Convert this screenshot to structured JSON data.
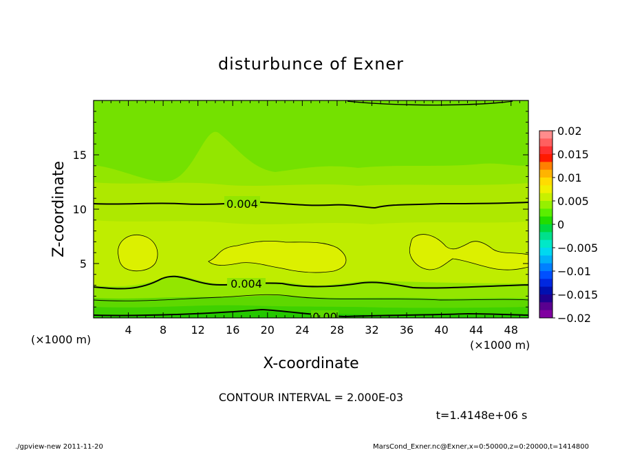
{
  "chart_data": {
    "type": "contour",
    "title": "disturbunce of Exner",
    "xlabel": "X-coordinate",
    "ylabel": "Z-coordinate",
    "x_unit_label": "(×1000 m)",
    "y_unit_label": "(×1000 m)",
    "xlim": [
      0,
      50
    ],
    "ylim": [
      0,
      20
    ],
    "xticks": [
      4,
      8,
      12,
      16,
      20,
      24,
      28,
      32,
      36,
      40,
      44,
      48
    ],
    "yticks": [
      5,
      10,
      15
    ],
    "contour_interval_text": "CONTOUR INTERVAL = 2.000E-03",
    "time_text": "t=1.4148e+06 s",
    "contour_labels": [
      {
        "text": "0.004",
        "x": 17.0,
        "z": 10.4
      },
      {
        "text": "0.004",
        "x": 17.2,
        "z": 3.1
      },
      {
        "text": "0.00",
        "x": 26.5,
        "z": 0.2
      }
    ],
    "colorbar": {
      "tick_labels": [
        "0.02",
        "0.015",
        "0.01",
        "0.005",
        "0",
        "−0.005",
        "−0.01",
        "−0.015",
        "−0.02"
      ],
      "ticks": [
        0.02,
        0.015,
        0.01,
        0.005,
        0,
        -0.005,
        -0.01,
        -0.015,
        -0.02
      ],
      "colors": [
        "#ff8c8c",
        "#ff6060",
        "#ff3030",
        "#ff1a00",
        "#ff8000",
        "#ffb400",
        "#ffdc00",
        "#f0f000",
        "#c8f000",
        "#96f000",
        "#5aee00",
        "#22dd00",
        "#00d840",
        "#00e08c",
        "#00e8c8",
        "#00d8f0",
        "#00b0f8",
        "#0080ff",
        "#0050ff",
        "#0028e0",
        "#0010b0",
        "#200090",
        "#5a0090",
        "#8000a0"
      ]
    },
    "field_levels": [
      {
        "z_range": [
          0,
          0.3
        ],
        "approx_value": 0.001
      },
      {
        "z_range": [
          0.3,
          1.3
        ],
        "approx_value": 0.0015
      },
      {
        "z_range": [
          1.3,
          2.4
        ],
        "approx_value": 0.0025
      },
      {
        "z_range": [
          2.4,
          8.0
        ],
        "approx_value": 0.004
      },
      {
        "z_range": [
          8.0,
          13.0
        ],
        "approx_value": 0.004
      },
      {
        "z_range": [
          13.0,
          20.0
        ],
        "approx_value": 0.003
      }
    ],
    "high_regions": [
      {
        "center_x": 5,
        "center_z": 6,
        "approx_value": 0.006
      },
      {
        "center_x": 23,
        "center_z": 5.9,
        "approx_value": 0.006
      },
      {
        "center_x": 39.5,
        "center_z": 5.9,
        "approx_value": 0.006
      },
      {
        "center_x": 46,
        "center_z": 5.8,
        "approx_value": 0.006
      }
    ]
  },
  "footer": {
    "left": "./gpview-new   2011-11-20",
    "right": "MarsCond_Exner.nc@Exner,x=0:50000,z=0:20000,t=1414800"
  }
}
